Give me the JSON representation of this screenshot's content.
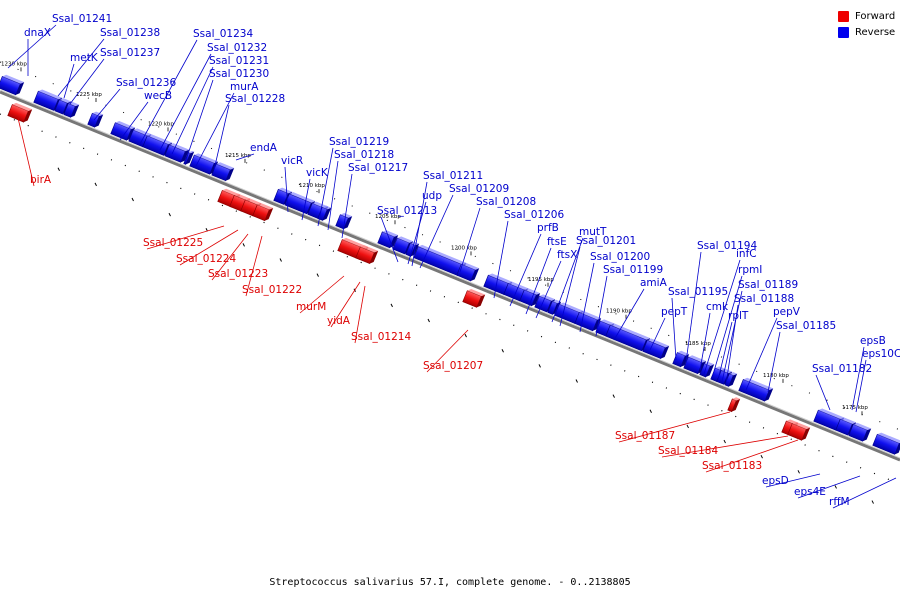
{
  "legend": {
    "forward": {
      "label": "Forward",
      "color": "#ee0000"
    },
    "reverse": {
      "label": "Reverse",
      "color": "#0000ee"
    }
  },
  "footer": "Streptococcus salivarius 57.I, complete genome. - 0..2138805",
  "ticks": [
    "1230 kbp",
    "1225 kbp",
    "1220 kbp",
    "1215 kbp",
    "1210 kbp",
    "1205 kbp",
    "1200 kbp",
    "1195 kbp",
    "1190 kbp",
    "1185 kbp",
    "1180 kbp",
    "1175 kbp"
  ],
  "genes_reverse": [
    "Ssal_01241",
    "dnaX",
    "Ssal_01238",
    "metK",
    "Ssal_01237",
    "Ssal_01236",
    "wecB",
    "Ssal_01234",
    "Ssal_01232",
    "Ssal_01231",
    "Ssal_01230",
    "murA",
    "Ssal_01228",
    "endA",
    "vicR",
    "vicK",
    "Ssal_01219",
    "Ssal_01218",
    "Ssal_01217",
    "Ssal_01213",
    "udp",
    "Ssal_01211",
    "Ssal_01209",
    "Ssal_01208",
    "Ssal_01206",
    "prfB",
    "ftsE",
    "ftsX",
    "mutT",
    "Ssal_01201",
    "Ssal_01200",
    "Ssal_01199",
    "amiA",
    "pepT",
    "Ssal_01195",
    "Ssal_01194",
    "cmk",
    "infC",
    "rpmI",
    "rplT",
    "Ssal_01189",
    "Ssal_01188",
    "pepV",
    "Ssal_01185",
    "Ssal_01182",
    "epsB",
    "eps10C",
    "epsD",
    "eps4E",
    "rffM"
  ],
  "genes_forward": [
    "birA",
    "Ssal_01225",
    "Ssal_01224",
    "Ssal_01223",
    "Ssal_01222",
    "murM",
    "yidA",
    "Ssal_01214",
    "Ssal_01207",
    "Ssal_01187",
    "Ssal_01184",
    "Ssal_01183"
  ]
}
